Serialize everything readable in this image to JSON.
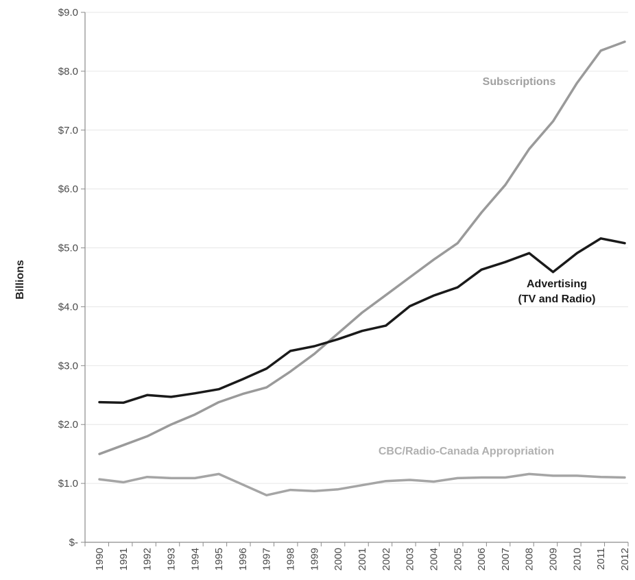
{
  "chart_data": {
    "type": "line",
    "title": "",
    "xlabel": "",
    "ylabel": "Billions",
    "x": [
      "1990",
      "1991",
      "1992",
      "1993",
      "1994",
      "1995",
      "1996",
      "1997",
      "1998",
      "1999",
      "2000",
      "2001",
      "2002",
      "2003",
      "2004",
      "2005",
      "2006",
      "2007",
      "2008",
      "2009",
      "2010",
      "2011",
      "2012"
    ],
    "ylim": [
      0,
      9
    ],
    "yticks": [
      0,
      1,
      2,
      3,
      4,
      5,
      6,
      7,
      8,
      9
    ],
    "ytick_labels": [
      "$-",
      "$1.0",
      "$2.0",
      "$3.0",
      "$4.0",
      "$5.0",
      "$6.0",
      "$7.0",
      "$8.0",
      "$9.0"
    ],
    "grid": true,
    "legend": "none",
    "series": [
      {
        "name": "Subscriptions",
        "label_lines": [
          "Subscriptions"
        ],
        "color": "#9a9a9a",
        "label_color": "#a0a0a0",
        "values": [
          1.5,
          1.65,
          1.8,
          2.0,
          2.17,
          2.38,
          2.52,
          2.63,
          2.9,
          3.2,
          3.55,
          3.9,
          4.2,
          4.5,
          4.8,
          5.08,
          5.6,
          6.07,
          6.68,
          7.15,
          7.8,
          8.35,
          8.5
        ]
      },
      {
        "name": "Advertising (TV and Radio)",
        "label_lines": [
          "Advertising",
          "(TV and Radio)"
        ],
        "color": "#1a1a1a",
        "label_color": "#1a1a1a",
        "values": [
          2.38,
          2.37,
          2.5,
          2.47,
          2.53,
          2.6,
          2.77,
          2.95,
          3.25,
          3.33,
          3.45,
          3.59,
          3.68,
          4.01,
          4.19,
          4.33,
          4.63,
          4.76,
          4.91,
          4.59,
          4.91,
          5.16,
          5.08
        ]
      },
      {
        "name": "CBC/Radio-Canada Appropriation",
        "label_lines": [
          "CBC/Radio-Canada  Appropriation"
        ],
        "color": "#a5a5a5",
        "label_color": "#b0b0b0",
        "values": [
          1.07,
          1.02,
          1.11,
          1.09,
          1.09,
          1.16,
          0.98,
          0.8,
          0.89,
          0.87,
          0.9,
          0.97,
          1.04,
          1.06,
          1.03,
          1.09,
          1.1,
          1.1,
          1.16,
          1.13,
          1.13,
          1.11,
          1.1
        ]
      }
    ]
  }
}
